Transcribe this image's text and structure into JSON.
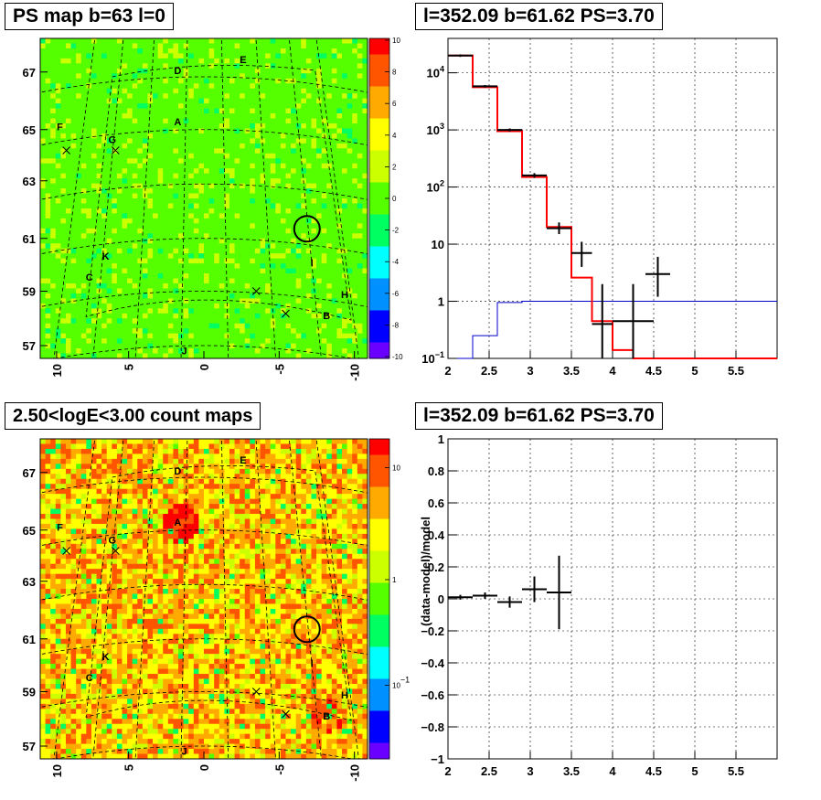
{
  "titles": {
    "ps_map": "PS map b=63 l=0",
    "count_map": "2.50<logE<3.00 count maps",
    "spectrum": "l=352.09 b=61.62 PS=3.70",
    "residual": "l=352.09 b=61.62 PS=3.70"
  },
  "colors": {
    "data": "#000000",
    "model": "#ff0000",
    "background": "#0000cc",
    "grid": "#000000"
  },
  "chart_data": [
    {
      "type": "heatmap",
      "title": "PS map b=63 l=0",
      "x_ticks": [
        "10",
        "5",
        "0",
        "-5",
        "-10"
      ],
      "y_ticks": [
        "67",
        "65",
        "63",
        "61",
        "59",
        "57"
      ],
      "colorbar_ticks": [
        "10",
        "8",
        "6",
        "4",
        "2",
        "0",
        "-2",
        "-4",
        "-6",
        "-8",
        "-10"
      ],
      "source_labels": [
        "D",
        "E",
        "F",
        "G",
        "A",
        "K",
        "C",
        "I",
        "H",
        "B",
        "J"
      ],
      "colormap": [
        "#6a00ff",
        "#0000ff",
        "#0090ff",
        "#00ffff",
        "#00ff60",
        "#55ff00",
        "#ccff00",
        "#ffff00",
        "#ffaa00",
        "#ff5500",
        "#ff0000"
      ]
    },
    {
      "type": "line",
      "title": "l=352.09 b=61.62 PS=3.70",
      "xlabel": "",
      "ylabel": "",
      "xlim": [
        2,
        6
      ],
      "ylim": [
        0.1,
        40000
      ],
      "ylog": true,
      "grid": true,
      "x_ticks": [
        "2",
        "2.5",
        "3",
        "3.5",
        "4",
        "4.5",
        "5",
        "5.5"
      ],
      "y_ticks": [
        "10^-1",
        "1",
        "10",
        "10^2",
        "10^3",
        "10^4"
      ],
      "edges": [
        2.0,
        2.3,
        2.6,
        2.9,
        3.2,
        3.5,
        3.75,
        4.0,
        4.25,
        4.5,
        6.0
      ],
      "series": [
        {
          "values": [
            20000,
            5600,
            950,
            150,
            20,
            2.6,
            0.45,
            0.14,
            0.1,
            0.1
          ]
        },
        {
          "values": [
            0.0,
            0.1,
            0.25,
            0.95,
            1.0,
            1.0,
            1.0,
            1.0,
            1.0,
            1.0,
            1.0
          ]
        },
        {
          "x": [
            2.15,
            2.45,
            2.75,
            3.05,
            3.35,
            3.625,
            3.875,
            4.25,
            4.55
          ],
          "y": [
            20000,
            5800,
            1000,
            160,
            19,
            7,
            0.4,
            0.45,
            3
          ],
          "xerr": [
            0.15,
            0.15,
            0.15,
            0.15,
            0.15,
            0.125,
            0.125,
            0.25,
            0.15
          ],
          "ylo": [
            19000,
            5500,
            940,
            145,
            15,
            4,
            0.1,
            0.1,
            1.2
          ],
          "yhi": [
            21000,
            6100,
            1060,
            175,
            24,
            11,
            2,
            2,
            6
          ]
        }
      ]
    },
    {
      "type": "heatmap",
      "title": "2.50<logE<3.00 count maps",
      "x_ticks": [
        "10",
        "5",
        "0",
        "-5",
        "-10"
      ],
      "y_ticks": [
        "67",
        "65",
        "63",
        "61",
        "59",
        "57"
      ],
      "colorbar_ticks": [
        "10",
        "1",
        "10^-1"
      ],
      "source_labels": [
        "D",
        "E",
        "F",
        "G",
        "A",
        "K",
        "C",
        "I",
        "H",
        "B",
        "J"
      ],
      "colormap": [
        "#6a00ff",
        "#0000ff",
        "#0090ff",
        "#00ffff",
        "#00ff60",
        "#55ff00",
        "#ccff00",
        "#ffff00",
        "#ffaa00",
        "#ff5500",
        "#ff0000"
      ]
    },
    {
      "type": "scatter",
      "title": "l=352.09 b=61.62 PS=3.70",
      "xlabel": "",
      "ylabel": "(data-model)/model",
      "xlim": [
        2,
        6
      ],
      "ylim": [
        -1,
        1
      ],
      "grid": true,
      "x_ticks": [
        "2",
        "2.5",
        "3",
        "3.5",
        "4",
        "4.5",
        "5",
        "5.5"
      ],
      "y_ticks": [
        "1",
        "0.8",
        "0.6",
        "0.4",
        "0.2",
        "0",
        "−0.2",
        "−0.4",
        "−0.6",
        "−0.8",
        "−1"
      ],
      "x": [
        2.15,
        2.45,
        2.75,
        3.05,
        3.35
      ],
      "y": [
        0.01,
        0.02,
        -0.02,
        0.06,
        0.04
      ],
      "xerr": [
        0.15,
        0.15,
        0.15,
        0.15,
        0.15
      ],
      "yerr": [
        0.015,
        0.02,
        0.035,
        0.08,
        0.23
      ]
    }
  ]
}
